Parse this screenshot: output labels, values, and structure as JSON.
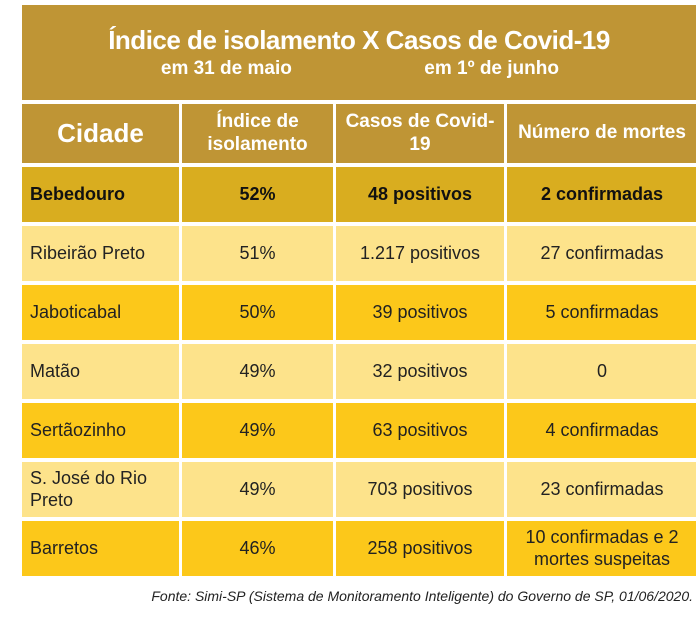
{
  "title": "Índice de isolamento X Casos de Covid-19",
  "subtitle_left": "em 31 de maio",
  "subtitle_right": "em 1º de junho",
  "source": "Fonte: Simi-SP (Sistema de Monitoramento Inteligente) do Governo de SP, 01/06/2020.",
  "colors": {
    "header": "#bf9535",
    "highlight_row": "#d9ad1f",
    "light_row": "#fde38b",
    "yellow_row": "#fcc81a"
  },
  "chart_data": {
    "type": "table",
    "title": "Índice de isolamento X Casos de Covid-19",
    "columns": [
      "Cidade",
      "Índice de isolamento",
      "Casos de Covid-19",
      "Número de mortes"
    ],
    "rows": [
      [
        "Bebedouro",
        "52%",
        "48 positivos",
        "2 confirmadas"
      ],
      [
        "Ribeirão Preto",
        "51%",
        "1.217 positivos",
        "27 confirmadas"
      ],
      [
        "Jaboticabal",
        "50%",
        "39 positivos",
        "5 confirmadas"
      ],
      [
        "Matão",
        "49%",
        "32 positivos",
        "0"
      ],
      [
        "Sertãozinho",
        "49%",
        "63 positivos",
        "4 confirmadas"
      ],
      [
        "S. José do Rio Preto",
        "49%",
        "703 positivos",
        "23 confirmadas"
      ],
      [
        "Barretos",
        "46%",
        "258 positivos",
        "10 confirmadas e 2 mortes suspeitas"
      ]
    ]
  }
}
